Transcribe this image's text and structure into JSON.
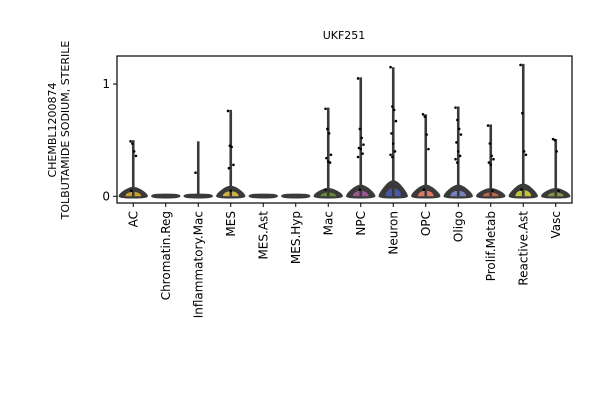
{
  "chart_data": {
    "type": "violin",
    "title": "UKF251",
    "ylabel_lines": [
      "CHEMBL1200874",
      "TOLBUTAMIDE SODIUM, STERILE"
    ],
    "xlabel": "",
    "ylim": [
      -0.06,
      1.25
    ],
    "yticks": [
      0,
      1
    ],
    "categories": [
      "AC",
      "Chromatin.Reg",
      "Inflammatory.Mac",
      "MES",
      "MES.Ast",
      "MES.Hyp",
      "Mac",
      "NPC",
      "Neuron",
      "OPC",
      "Oligo",
      "Prolif.Metab",
      "Reactive.Ast",
      "Vasc"
    ],
    "colors": [
      "#d4a52b",
      "#bbbbbb",
      "#5b8a44",
      "#d4b84a",
      "#aaaaaa",
      "#999999",
      "#6b8e3d",
      "#9c5a96",
      "#4a5aa8",
      "#e57b6a",
      "#7a86c4",
      "#c66a4a",
      "#c8c83a",
      "#8a9a3a"
    ],
    "series": [
      {
        "name": "AC",
        "max": 0.5,
        "bulge": 0.06,
        "points": [
          0.49,
          0.47,
          0.4,
          0.36,
          0.05
        ]
      },
      {
        "name": "Chromatin.Reg",
        "max": 0.0,
        "bulge": 0.0,
        "points": []
      },
      {
        "name": "Inflammatory.Mac",
        "max": 0.49,
        "bulge": 0.0,
        "points": [
          0.21
        ]
      },
      {
        "name": "MES",
        "max": 0.77,
        "bulge": 0.07,
        "points": [
          0.76,
          0.45,
          0.44,
          0.28,
          0.25,
          0.05
        ]
      },
      {
        "name": "MES.Ast",
        "max": 0.0,
        "bulge": 0.0,
        "points": []
      },
      {
        "name": "MES.Hyp",
        "max": 0.0,
        "bulge": 0.0,
        "points": []
      },
      {
        "name": "Mac",
        "max": 0.79,
        "bulge": 0.05,
        "points": [
          0.78,
          0.6,
          0.56,
          0.37,
          0.34,
          0.31,
          0.3,
          0.06
        ]
      },
      {
        "name": "NPC",
        "max": 1.06,
        "bulge": 0.08,
        "points": [
          1.05,
          0.6,
          0.52,
          0.46,
          0.43,
          0.42,
          0.38,
          0.35,
          0.06
        ]
      },
      {
        "name": "Neuron",
        "max": 1.15,
        "bulge": 0.12,
        "points": [
          1.15,
          0.8,
          0.77,
          0.67,
          0.56,
          0.47,
          0.4,
          0.37,
          0.35
        ]
      },
      {
        "name": "OPC",
        "max": 0.73,
        "bulge": 0.08,
        "points": [
          0.73,
          0.71,
          0.55,
          0.42,
          0.06
        ]
      },
      {
        "name": "Oligo",
        "max": 0.8,
        "bulge": 0.08,
        "points": [
          0.79,
          0.68,
          0.6,
          0.55,
          0.48,
          0.4,
          0.36,
          0.33,
          0.3
        ]
      },
      {
        "name": "Prolif.Metab",
        "max": 0.64,
        "bulge": 0.05,
        "points": [
          0.63,
          0.47,
          0.36,
          0.33,
          0.3,
          0.28,
          0.05
        ]
      },
      {
        "name": "Reactive.Ast",
        "max": 1.18,
        "bulge": 0.09,
        "points": [
          1.17,
          0.74,
          0.4,
          0.37,
          0.06
        ]
      },
      {
        "name": "Vasc",
        "max": 0.51,
        "bulge": 0.05,
        "points": [
          0.51,
          0.5,
          0.4,
          0.05
        ]
      }
    ],
    "grid": false,
    "legend": "none"
  }
}
